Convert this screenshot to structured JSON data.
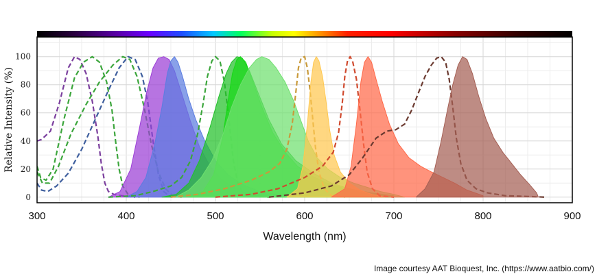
{
  "chart_data": {
    "type": "area",
    "xlabel": "Wavelength (nm)",
    "ylabel": "Relative Intensity (%)",
    "xlim": [
      300,
      900
    ],
    "ylim": [
      -4,
      114
    ],
    "x_ticks": [
      300,
      400,
      500,
      600,
      700,
      800,
      900
    ],
    "y_ticks": [
      0,
      20,
      40,
      60,
      80,
      100
    ],
    "grid": true,
    "spectrum_bar": true,
    "credit": "Image courtesy AAT Bioquest, Inc. (https://www.aatbio.com/)",
    "series": [
      {
        "kind": "excitation",
        "color": "#7b3f9e",
        "values": [
          [
            300,
            40
          ],
          [
            305,
            41
          ],
          [
            315,
            47
          ],
          [
            325,
            67
          ],
          [
            335,
            92
          ],
          [
            342,
            100
          ],
          [
            348,
            98
          ],
          [
            355,
            88
          ],
          [
            362,
            68
          ],
          [
            368,
            44
          ],
          [
            372,
            24
          ],
          [
            376,
            10
          ],
          [
            380,
            4
          ],
          [
            386,
            2
          ],
          [
            395,
            1
          ],
          [
            410,
            0
          ]
        ]
      },
      {
        "kind": "excitation",
        "color": "#3ca63c",
        "values": [
          [
            300,
            22
          ],
          [
            304,
            14
          ],
          [
            310,
            12
          ],
          [
            318,
            20
          ],
          [
            330,
            55
          ],
          [
            342,
            85
          ],
          [
            352,
            96
          ],
          [
            362,
            100
          ],
          [
            370,
            96
          ],
          [
            378,
            82
          ],
          [
            384,
            62
          ],
          [
            388,
            40
          ],
          [
            392,
            20
          ],
          [
            396,
            8
          ],
          [
            402,
            2
          ],
          [
            415,
            0
          ]
        ]
      },
      {
        "kind": "excitation",
        "color": "#3f5f9e",
        "values": [
          [
            300,
            10
          ],
          [
            305,
            5
          ],
          [
            312,
            4
          ],
          [
            322,
            8
          ],
          [
            335,
            17
          ],
          [
            350,
            34
          ],
          [
            365,
            55
          ],
          [
            380,
            76
          ],
          [
            392,
            92
          ],
          [
            402,
            100
          ],
          [
            410,
            98
          ],
          [
            418,
            86
          ],
          [
            424,
            68
          ],
          [
            430,
            40
          ],
          [
            436,
            16
          ],
          [
            442,
            4
          ],
          [
            450,
            0
          ]
        ]
      },
      {
        "kind": "excitation",
        "color": "#3ca63c",
        "values": [
          [
            300,
            18
          ],
          [
            306,
            10
          ],
          [
            314,
            10
          ],
          [
            324,
            22
          ],
          [
            338,
            45
          ],
          [
            355,
            66
          ],
          [
            370,
            82
          ],
          [
            385,
            94
          ],
          [
            396,
            100
          ],
          [
            404,
            98
          ],
          [
            412,
            86
          ],
          [
            420,
            64
          ],
          [
            428,
            38
          ],
          [
            436,
            18
          ],
          [
            444,
            6
          ],
          [
            452,
            1
          ],
          [
            462,
            0
          ]
        ]
      },
      {
        "kind": "emission",
        "color": "#9b3ed6",
        "values": [
          [
            380,
            0
          ],
          [
            393,
            4
          ],
          [
            405,
            20
          ],
          [
            415,
            50
          ],
          [
            423,
            75
          ],
          [
            430,
            92
          ],
          [
            436,
            99
          ],
          [
            442,
            100
          ],
          [
            448,
            98
          ],
          [
            454,
            90
          ],
          [
            462,
            74
          ],
          [
            472,
            54
          ],
          [
            482,
            36
          ],
          [
            494,
            22
          ],
          [
            506,
            13
          ],
          [
            520,
            7
          ],
          [
            540,
            3
          ],
          [
            560,
            1
          ],
          [
            580,
            0
          ]
        ]
      },
      {
        "kind": "emission",
        "color": "#5b7de0",
        "values": [
          [
            400,
            0
          ],
          [
            412,
            4
          ],
          [
            422,
            14
          ],
          [
            432,
            38
          ],
          [
            440,
            64
          ],
          [
            446,
            88
          ],
          [
            450,
            97
          ],
          [
            454,
            100
          ],
          [
            458,
            96
          ],
          [
            463,
            86
          ],
          [
            470,
            70
          ],
          [
            478,
            55
          ],
          [
            488,
            40
          ],
          [
            500,
            26
          ],
          [
            514,
            16
          ],
          [
            530,
            9
          ],
          [
            550,
            4
          ],
          [
            575,
            1
          ],
          [
            600,
            0
          ]
        ]
      },
      {
        "kind": "excitation",
        "color": "#3ca63c",
        "values": [
          [
            380,
            0
          ],
          [
            410,
            1
          ],
          [
            430,
            4
          ],
          [
            450,
            8
          ],
          [
            462,
            14
          ],
          [
            472,
            26
          ],
          [
            480,
            45
          ],
          [
            486,
            66
          ],
          [
            491,
            86
          ],
          [
            496,
            97
          ],
          [
            500,
            100
          ],
          [
            505,
            97
          ],
          [
            510,
            82
          ],
          [
            515,
            56
          ],
          [
            520,
            26
          ],
          [
            525,
            10
          ],
          [
            530,
            4
          ],
          [
            540,
            1
          ],
          [
            560,
            0
          ]
        ]
      },
      {
        "kind": "emission",
        "color": "#22c02a",
        "values": [
          [
            440,
            0
          ],
          [
            456,
            2
          ],
          [
            470,
            10
          ],
          [
            482,
            26
          ],
          [
            494,
            50
          ],
          [
            504,
            72
          ],
          [
            512,
            88
          ],
          [
            518,
            96
          ],
          [
            524,
            100
          ],
          [
            530,
            99
          ],
          [
            538,
            90
          ],
          [
            548,
            74
          ],
          [
            560,
            55
          ],
          [
            574,
            38
          ],
          [
            590,
            26
          ],
          [
            610,
            17
          ],
          [
            630,
            10
          ],
          [
            650,
            6
          ],
          [
            675,
            3
          ],
          [
            700,
            1
          ]
        ]
      },
      {
        "kind": "emission",
        "color": "#18d818",
        "values": [
          [
            470,
            0
          ],
          [
            486,
            4
          ],
          [
            498,
            16
          ],
          [
            508,
            42
          ],
          [
            514,
            68
          ],
          [
            519,
            88
          ],
          [
            524,
            98
          ],
          [
            528,
            100
          ],
          [
            534,
            96
          ],
          [
            542,
            82
          ],
          [
            552,
            64
          ],
          [
            564,
            46
          ],
          [
            578,
            32
          ],
          [
            592,
            22
          ],
          [
            608,
            15
          ],
          [
            625,
            10
          ],
          [
            645,
            6
          ],
          [
            665,
            3
          ],
          [
            685,
            1
          ],
          [
            700,
            0
          ]
        ]
      },
      {
        "kind": "emission",
        "color": "#6fe06f",
        "values": [
          [
            455,
            0
          ],
          [
            470,
            5
          ],
          [
            484,
            14
          ],
          [
            496,
            26
          ],
          [
            508,
            44
          ],
          [
            518,
            64
          ],
          [
            528,
            80
          ],
          [
            538,
            92
          ],
          [
            546,
            98
          ],
          [
            552,
            100
          ],
          [
            560,
            98
          ],
          [
            568,
            92
          ],
          [
            578,
            82
          ],
          [
            588,
            68
          ],
          [
            596,
            54
          ],
          [
            604,
            40
          ],
          [
            614,
            28
          ],
          [
            626,
            20
          ],
          [
            640,
            14
          ],
          [
            655,
            10
          ],
          [
            670,
            7
          ],
          [
            685,
            4
          ],
          [
            700,
            2
          ],
          [
            712,
            0
          ]
        ]
      },
      {
        "kind": "excitation",
        "color": "#c99a3a",
        "values": [
          [
            450,
            0
          ],
          [
            480,
            2
          ],
          [
            510,
            6
          ],
          [
            540,
            12
          ],
          [
            560,
            18
          ],
          [
            572,
            24
          ],
          [
            580,
            34
          ],
          [
            586,
            52
          ],
          [
            590,
            74
          ],
          [
            593,
            92
          ],
          [
            596,
            99
          ],
          [
            600,
            100
          ],
          [
            603,
            92
          ],
          [
            606,
            76
          ],
          [
            609,
            56
          ],
          [
            612,
            36
          ],
          [
            616,
            18
          ],
          [
            622,
            6
          ],
          [
            630,
            1
          ],
          [
            645,
            0
          ]
        ]
      },
      {
        "kind": "emission",
        "color": "#ffc850",
        "values": [
          [
            580,
            0
          ],
          [
            592,
            6
          ],
          [
            598,
            22
          ],
          [
            603,
            52
          ],
          [
            607,
            82
          ],
          [
            610,
            96
          ],
          [
            613,
            100
          ],
          [
            616,
            97
          ],
          [
            620,
            86
          ],
          [
            624,
            68
          ],
          [
            628,
            48
          ],
          [
            633,
            30
          ],
          [
            640,
            18
          ],
          [
            650,
            10
          ],
          [
            662,
            5
          ],
          [
            675,
            2
          ],
          [
            690,
            0
          ]
        ]
      },
      {
        "kind": "excitation",
        "color": "#d04a2e",
        "values": [
          [
            500,
            0
          ],
          [
            540,
            2
          ],
          [
            570,
            6
          ],
          [
            600,
            14
          ],
          [
            620,
            22
          ],
          [
            632,
            32
          ],
          [
            638,
            46
          ],
          [
            642,
            66
          ],
          [
            645,
            86
          ],
          [
            648,
            97
          ],
          [
            651,
            100
          ],
          [
            654,
            96
          ],
          [
            658,
            84
          ],
          [
            662,
            62
          ],
          [
            666,
            38
          ],
          [
            670,
            18
          ],
          [
            676,
            6
          ],
          [
            684,
            1
          ],
          [
            700,
            0
          ]
        ]
      },
      {
        "kind": "emission",
        "color": "#ff6a4a",
        "values": [
          [
            630,
            0
          ],
          [
            645,
            6
          ],
          [
            652,
            22
          ],
          [
            658,
            52
          ],
          [
            663,
            82
          ],
          [
            667,
            96
          ],
          [
            671,
            100
          ],
          [
            675,
            96
          ],
          [
            680,
            84
          ],
          [
            687,
            68
          ],
          [
            695,
            52
          ],
          [
            705,
            38
          ],
          [
            717,
            28
          ],
          [
            730,
            22
          ],
          [
            742,
            18
          ],
          [
            755,
            14
          ],
          [
            768,
            10
          ],
          [
            782,
            5
          ],
          [
            800,
            1
          ]
        ]
      },
      {
        "kind": "excitation",
        "color": "#6b3a30",
        "values": [
          [
            560,
            0
          ],
          [
            600,
            3
          ],
          [
            630,
            8
          ],
          [
            650,
            16
          ],
          [
            665,
            28
          ],
          [
            680,
            42
          ],
          [
            692,
            47
          ],
          [
            702,
            48
          ],
          [
            712,
            52
          ],
          [
            720,
            62
          ],
          [
            728,
            75
          ],
          [
            735,
            86
          ],
          [
            742,
            94
          ],
          [
            748,
            99
          ],
          [
            753,
            100
          ],
          [
            758,
            96
          ],
          [
            762,
            84
          ],
          [
            766,
            64
          ],
          [
            770,
            42
          ],
          [
            775,
            24
          ],
          [
            782,
            12
          ],
          [
            792,
            6
          ],
          [
            805,
            3
          ],
          [
            825,
            1
          ],
          [
            850,
            0.5
          ],
          [
            870,
            0
          ]
        ]
      },
      {
        "kind": "emission",
        "color": "#a56055",
        "values": [
          [
            725,
            0
          ],
          [
            735,
            6
          ],
          [
            745,
            18
          ],
          [
            753,
            40
          ],
          [
            760,
            62
          ],
          [
            766,
            80
          ],
          [
            772,
            94
          ],
          [
            777,
            100
          ],
          [
            782,
            98
          ],
          [
            788,
            88
          ],
          [
            795,
            72
          ],
          [
            803,
            56
          ],
          [
            812,
            42
          ],
          [
            822,
            32
          ],
          [
            832,
            24
          ],
          [
            842,
            16
          ],
          [
            852,
            9
          ],
          [
            860,
            3
          ],
          [
            862,
            0
          ]
        ]
      }
    ]
  }
}
